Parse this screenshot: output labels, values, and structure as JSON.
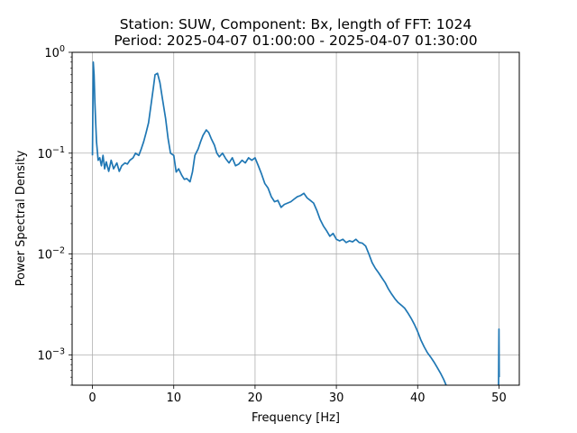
{
  "chart_data": {
    "type": "line",
    "title_line1": "Station: SUW, Component: Bx, length of FFT: 1024",
    "title_line2": "Period: 2025-04-07 01:00:00 - 2025-04-07 01:30:00",
    "xlabel": "Frequency [Hz]",
    "ylabel": "Power Spectral Density",
    "xlim": [
      -2.5,
      52.5
    ],
    "ylim": [
      0.0005,
      1
    ],
    "yscale": "log",
    "grid": true,
    "x_ticks": [
      0,
      10,
      20,
      30,
      40,
      50
    ],
    "x_tick_labels": [
      "0",
      "10",
      "20",
      "30",
      "40",
      "50"
    ],
    "y_ticks": [
      0.001,
      0.01,
      0.1,
      1
    ],
    "y_tick_labels": [
      {
        "base": "10",
        "exp": "−3"
      },
      {
        "base": "10",
        "exp": "−2"
      },
      {
        "base": "10",
        "exp": "−1"
      },
      {
        "base": "10",
        "exp": "0"
      }
    ],
    "line_color": "#1f77b4",
    "series": [
      {
        "x": [
          0.0,
          0.1,
          0.2,
          0.3,
          0.4,
          0.5,
          0.7,
          0.9,
          1.1,
          1.3,
          1.5,
          1.7,
          2.0,
          2.3,
          2.6,
          3.0,
          3.3,
          3.6,
          4.0,
          4.3,
          4.6,
          5.0,
          5.3,
          5.7,
          6.0,
          6.3,
          6.6,
          6.9,
          7.2,
          7.5,
          7.7,
          8.0,
          8.3,
          8.6,
          9.0,
          9.3,
          9.6,
          10.0,
          10.3,
          10.6,
          11.0,
          11.3,
          11.6,
          12.0,
          12.3,
          12.6,
          13.0,
          13.3,
          13.6,
          14.0,
          14.3,
          14.6,
          15.0,
          15.3,
          15.6,
          16.0,
          16.4,
          16.8,
          17.2,
          17.6,
          18.0,
          18.4,
          18.8,
          19.2,
          19.6,
          20.0,
          20.4,
          20.8,
          21.2,
          21.6,
          22.0,
          22.4,
          22.8,
          23.2,
          23.6,
          24.0,
          24.4,
          24.8,
          25.2,
          25.6,
          26.0,
          26.4,
          26.8,
          27.2,
          27.6,
          28.0,
          28.4,
          28.8,
          29.2,
          29.6,
          30.0,
          30.4,
          30.8,
          31.2,
          31.6,
          32.0,
          32.4,
          32.8,
          33.2,
          33.6,
          34.0,
          34.4,
          34.8,
          35.2,
          35.6,
          36.0,
          36.4,
          36.8,
          37.2,
          37.6,
          38.0,
          38.4,
          38.8,
          39.2,
          39.6,
          40.0,
          40.4,
          40.8,
          41.2,
          41.6,
          42.0,
          42.4,
          42.8,
          43.2,
          43.5
        ],
        "y": [
          0.095,
          0.8,
          0.6,
          0.32,
          0.2,
          0.13,
          0.085,
          0.09,
          0.075,
          0.095,
          0.07,
          0.082,
          0.066,
          0.085,
          0.07,
          0.08,
          0.066,
          0.075,
          0.08,
          0.078,
          0.085,
          0.09,
          0.1,
          0.095,
          0.11,
          0.13,
          0.16,
          0.2,
          0.3,
          0.45,
          0.6,
          0.62,
          0.5,
          0.35,
          0.22,
          0.14,
          0.1,
          0.095,
          0.065,
          0.07,
          0.06,
          0.055,
          0.056,
          0.052,
          0.065,
          0.095,
          0.11,
          0.13,
          0.15,
          0.17,
          0.16,
          0.14,
          0.12,
          0.1,
          0.092,
          0.1,
          0.088,
          0.08,
          0.09,
          0.075,
          0.078,
          0.085,
          0.08,
          0.09,
          0.085,
          0.09,
          0.075,
          0.062,
          0.05,
          0.045,
          0.037,
          0.033,
          0.034,
          0.029,
          0.031,
          0.032,
          0.033,
          0.035,
          0.037,
          0.038,
          0.04,
          0.036,
          0.034,
          0.032,
          0.027,
          0.022,
          0.019,
          0.017,
          0.015,
          0.016,
          0.014,
          0.0135,
          0.014,
          0.013,
          0.0135,
          0.0132,
          0.014,
          0.013,
          0.0128,
          0.012,
          0.01,
          0.0082,
          0.0072,
          0.0065,
          0.0058,
          0.0052,
          0.0045,
          0.004,
          0.0036,
          0.0033,
          0.0031,
          0.0029,
          0.0026,
          0.0023,
          0.002,
          0.0017,
          0.0014,
          0.0012,
          0.00105,
          0.00095,
          0.00085,
          0.00075,
          0.00066,
          0.00057,
          0.0005
        ]
      },
      {
        "x": [
          49.95,
          49.97,
          50.0,
          50.03
        ],
        "y": [
          0.0005,
          0.0009,
          0.0018,
          0.0006
        ]
      }
    ]
  }
}
